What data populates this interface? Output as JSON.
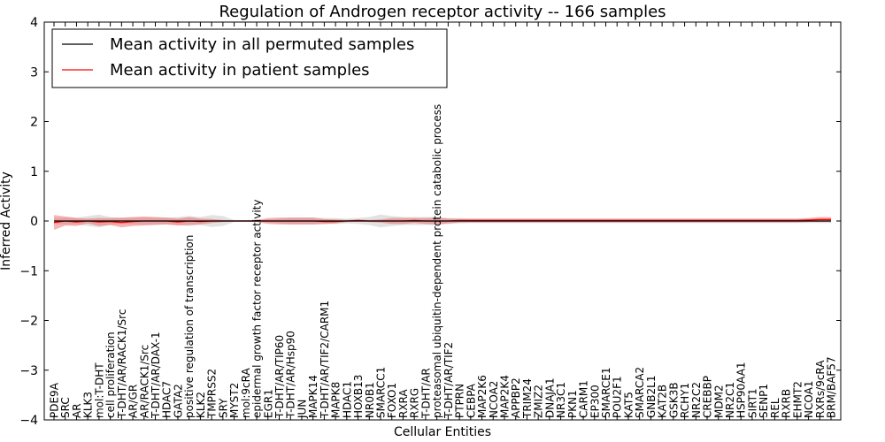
{
  "chart_data": {
    "type": "line",
    "title": "Regulation of Androgen receptor activity -- 166 samples",
    "xlabel": "Cellular Entities",
    "ylabel": "Inferred Activity",
    "ylim": [
      -4,
      4
    ],
    "yticks": [
      -4,
      -3,
      -2,
      -1,
      0,
      1,
      2,
      3,
      4
    ],
    "grid": false,
    "legend": {
      "placement": "top-left",
      "entries": [
        {
          "label": "Mean activity in all permuted samples",
          "color": "#000000"
        },
        {
          "label": "Mean activity in patient samples",
          "color": "#ff0000"
        }
      ]
    },
    "categories": [
      "PDE9A",
      "SRC",
      "AR",
      "KLK3",
      "mol:T-DHT",
      "cell proliferation",
      "T-DHT/AR/RACK1/Src",
      "AR/GR",
      "AR/RACK1/Src",
      "T-DHT/AR/DAX-1",
      "HDAC7",
      "GATA2",
      "positive regulation of transcription",
      "KLK2",
      "TMPRSS2",
      "SRY",
      "MYST2",
      "mol:9cRA",
      "epidermal growth factor receptor activity",
      "EGR1",
      "T-DHT/AR/TIP60",
      "T-DHT/AR/Hsp90",
      "JUN",
      "MAPK14",
      "T-DHT/AR/TIF2/CARM1",
      "MAPK8",
      "HDAC1",
      "HOXB13",
      "NR0B1",
      "SMARCC1",
      "FOXO1",
      "RXRA",
      "RXRG",
      "T-DHT/AR",
      "proteasomal ubiquitin-dependent protein catabolic process",
      "T-DHT/AR/TIF2",
      "PTPRN",
      "CEBPA",
      "MAP2K6",
      "NCOA2",
      "MAP2K4",
      "APPBP2",
      "TRIM24",
      "ZMIZ2",
      "DNAJA1",
      "NR3C1",
      "PKN1",
      "CARM1",
      "EP300",
      "SMARCE1",
      "POU2F1",
      "KAT5",
      "SMARCA2",
      "GNB2L1",
      "KAT2B",
      "GSK3B",
      "RCHY1",
      "NR2C2",
      "CREBBP",
      "MDM2",
      "NR2C1",
      "HSP90AA1",
      "SIRT1",
      "SENP1",
      "REL",
      "RXRB",
      "EHMT2",
      "NCOA1",
      "RXRs/9cRA",
      "BRM/BAF57"
    ],
    "series": [
      {
        "name": "Mean activity in all permuted samples",
        "color": "#000000",
        "values": [
          0,
          0,
          0,
          0,
          0,
          0,
          0,
          0,
          0,
          0,
          0,
          0,
          0,
          0,
          0,
          0,
          0,
          0,
          0,
          0,
          0,
          0,
          0,
          0,
          0,
          0,
          0,
          0,
          0,
          0,
          0,
          0,
          0,
          0,
          0,
          0,
          0,
          0,
          0,
          0,
          0,
          0,
          0,
          0,
          0,
          0,
          0,
          0,
          0,
          0,
          0,
          0,
          0,
          0,
          0,
          0,
          0,
          0,
          0,
          0,
          0,
          0,
          0,
          0,
          0,
          0,
          0,
          0,
          0,
          0
        ],
        "band": [
          0.06,
          0.07,
          0.07,
          0.1,
          0.13,
          0.08,
          0.06,
          0.07,
          0.07,
          0.07,
          0.07,
          0.08,
          0.1,
          0.08,
          0.12,
          0.1,
          0.02,
          0.02,
          0.02,
          0.03,
          0.05,
          0.07,
          0.07,
          0.07,
          0.06,
          0.06,
          0.05,
          0.06,
          0.08,
          0.13,
          0.1,
          0.08,
          0.08,
          0.08,
          0.08,
          0.06,
          0.05,
          0.04,
          0.04,
          0.04,
          0.04,
          0.04,
          0.04,
          0.04,
          0.04,
          0.04,
          0.04,
          0.04,
          0.04,
          0.04,
          0.04,
          0.04,
          0.04,
          0.04,
          0.04,
          0.04,
          0.04,
          0.04,
          0.04,
          0.04,
          0.04,
          0.04,
          0.04,
          0.04,
          0.04,
          0.04,
          0.04,
          0.04,
          0.04,
          0.04
        ]
      },
      {
        "name": "Mean activity in patient samples",
        "color": "#ff0000",
        "values": [
          -0.03,
          0,
          -0.02,
          0,
          -0.02,
          -0.01,
          -0.03,
          -0.01,
          0,
          0,
          0,
          -0.02,
          0,
          -0.01,
          0,
          0,
          0,
          0,
          0,
          0,
          0,
          0,
          0,
          0,
          -0.01,
          -0.01,
          0,
          0.01,
          0,
          0,
          0,
          0,
          0.01,
          0,
          0,
          0,
          0.01,
          0.01,
          0.01,
          0.01,
          0.01,
          0.01,
          0.01,
          0.01,
          0.01,
          0.01,
          0.01,
          0.01,
          0.01,
          0.01,
          0.01,
          0.01,
          0.01,
          0.01,
          0.01,
          0.01,
          0.01,
          0.01,
          0.01,
          0.01,
          0.01,
          0.01,
          0.01,
          0.01,
          0.01,
          0.01,
          0.01,
          0.02,
          0.03,
          0.03
        ],
        "band": [
          0.15,
          0.09,
          0.08,
          0.05,
          0.08,
          0.07,
          0.1,
          0.09,
          0.09,
          0.08,
          0.07,
          0.07,
          0.08,
          0.06,
          0.04,
          0.02,
          0.01,
          0.01,
          0.02,
          0.06,
          0.07,
          0.07,
          0.07,
          0.07,
          0.05,
          0.04,
          0.02,
          0.02,
          0.02,
          0.03,
          0.06,
          0.06,
          0.05,
          0.06,
          0.07,
          0.05,
          0.04,
          0.04,
          0.04,
          0.04,
          0.04,
          0.04,
          0.04,
          0.04,
          0.04,
          0.04,
          0.04,
          0.04,
          0.04,
          0.04,
          0.04,
          0.04,
          0.04,
          0.04,
          0.04,
          0.04,
          0.04,
          0.04,
          0.04,
          0.04,
          0.04,
          0.04,
          0.04,
          0.04,
          0.04,
          0.04,
          0.04,
          0.04,
          0.05,
          0.05
        ]
      }
    ]
  }
}
